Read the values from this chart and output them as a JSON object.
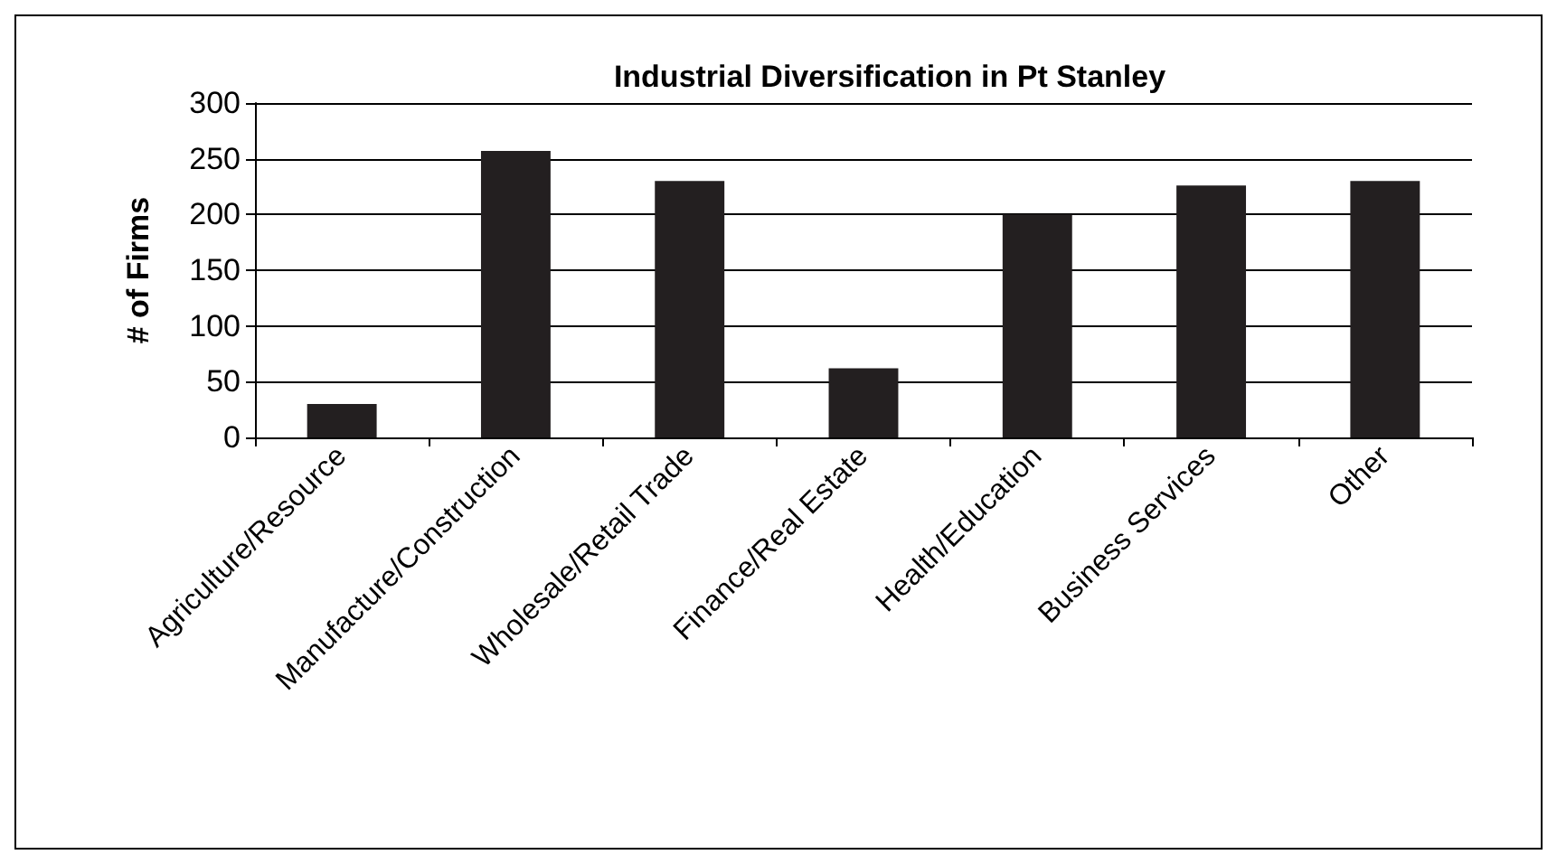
{
  "chart_data": {
    "type": "bar",
    "title": "Industrial Diversification in Pt Stanley",
    "ylabel": "# of Firms",
    "categories": [
      "Agriculture/Resource",
      "Manufacture/Construction",
      "Wholesale/Retail Trade",
      "Finance/Real Estate",
      "Health/Education",
      "Business Services",
      "Other"
    ],
    "values": [
      30,
      257,
      230,
      62,
      200,
      226,
      230
    ],
    "color": "#231f20",
    "ylim": [
      0,
      300
    ],
    "yticks": [
      0,
      50,
      100,
      150,
      200,
      250,
      300
    ],
    "grid": "y"
  }
}
